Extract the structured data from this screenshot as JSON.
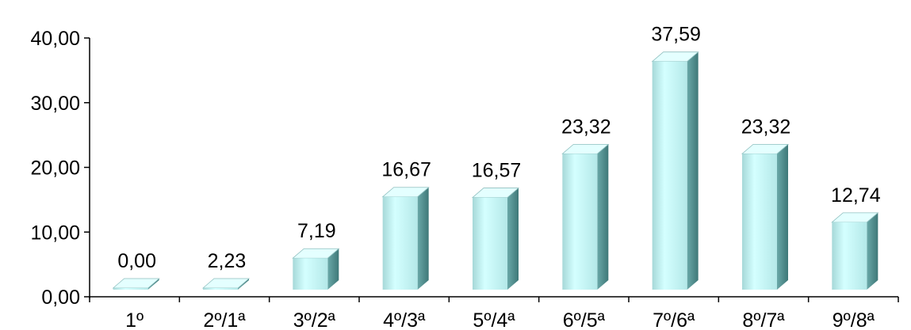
{
  "chart_data": {
    "type": "bar",
    "style": "3d",
    "categories": [
      "1º",
      "2º/1ª",
      "3º/2ª",
      "4º/3ª",
      "5º/4ª",
      "6º/5ª",
      "7º/6ª",
      "8º/7ª",
      "9º/8ª"
    ],
    "values": [
      0.0,
      2.23,
      7.19,
      16.67,
      16.57,
      23.32,
      37.59,
      23.32,
      12.74
    ],
    "value_labels": [
      "0,00",
      "2,23",
      "7,19",
      "16,67",
      "16,57",
      "23,32",
      "37,59",
      "23,32",
      "12,74"
    ],
    "ylim": [
      0,
      40
    ],
    "yticks": [
      {
        "value": 0,
        "label": "0,00"
      },
      {
        "value": 10,
        "label": "10,00"
      },
      {
        "value": 20,
        "label": "20,00"
      },
      {
        "value": 30,
        "label": "30,00"
      },
      {
        "value": 40,
        "label": "40,00"
      }
    ],
    "grid": false,
    "colors": {
      "bar_front": "#c8ffff",
      "bar_side": "#5a9a9a",
      "bar_top": "#e4ffff",
      "axis": "#000000"
    }
  }
}
